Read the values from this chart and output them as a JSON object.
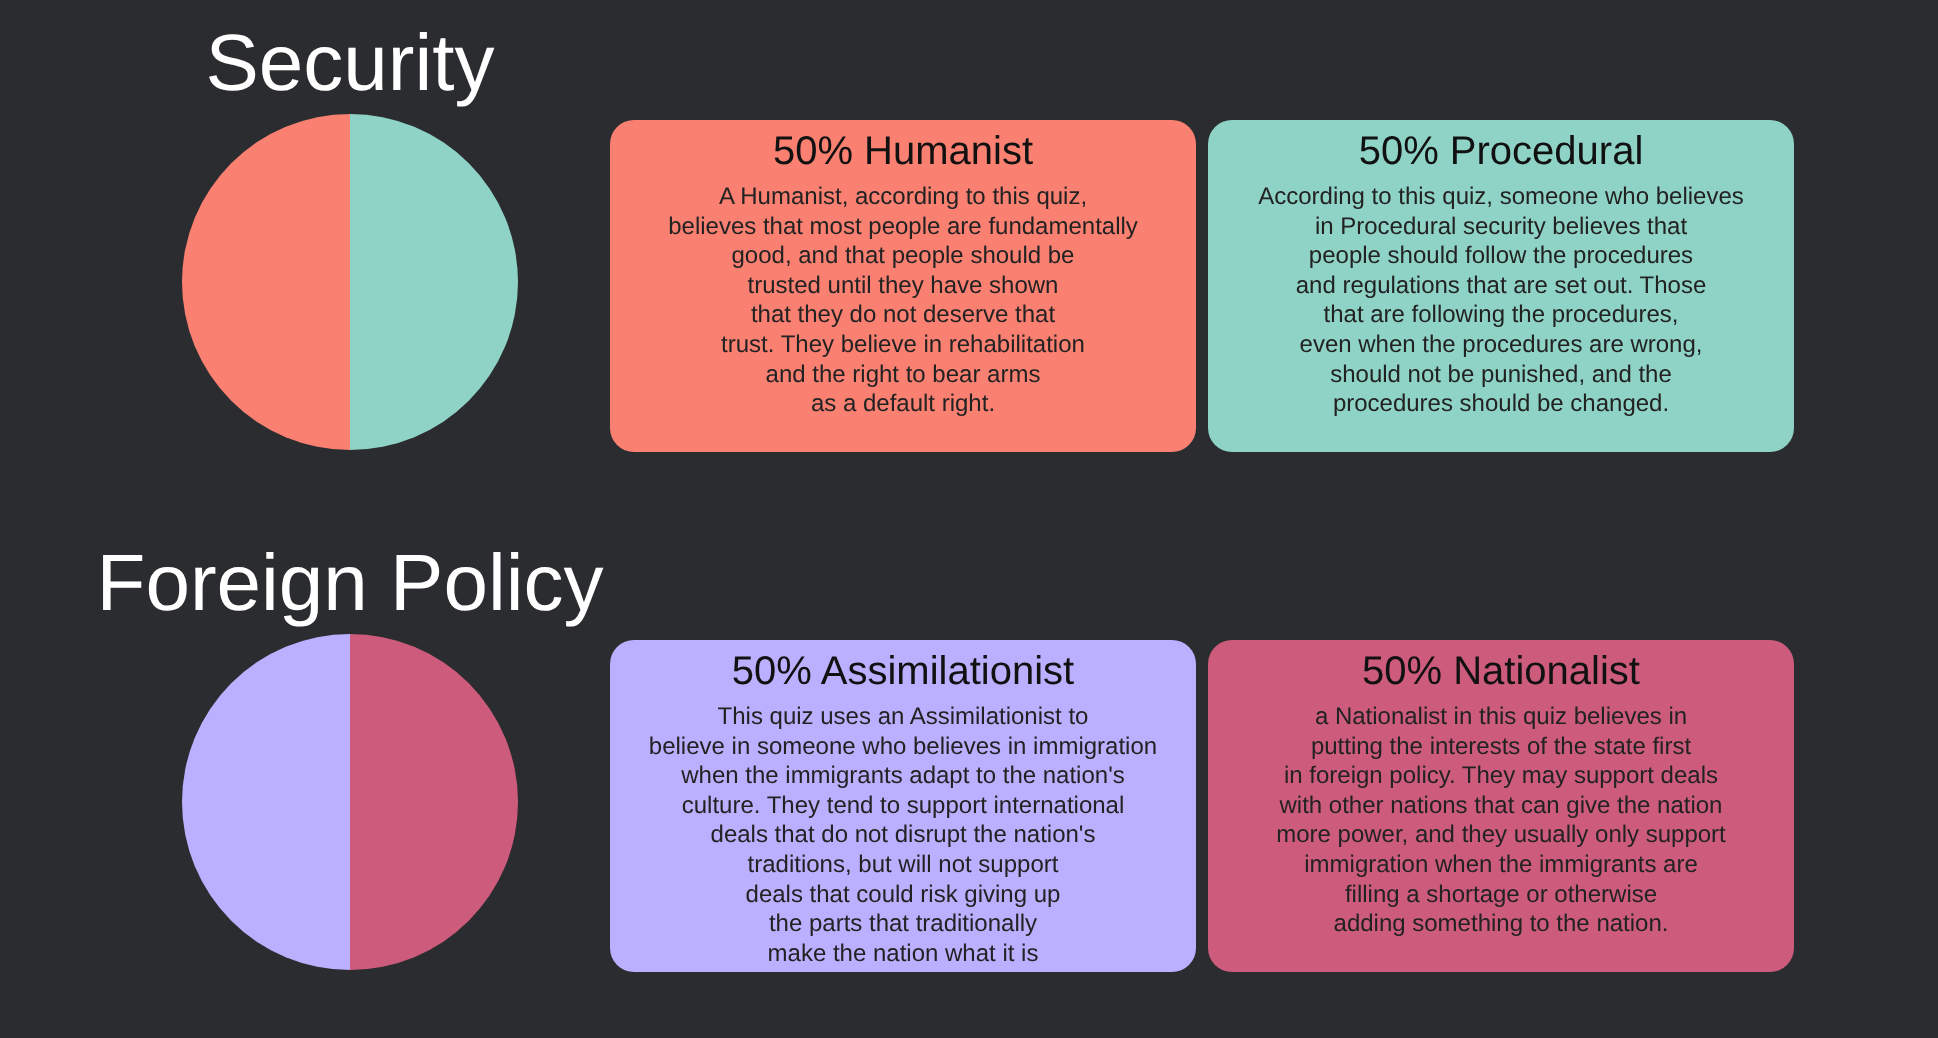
{
  "chart_data": [
    {
      "type": "pie",
      "title": "Security",
      "categories": [
        null,
        null
      ],
      "values": [
        50,
        50
      ],
      "colors": [
        "#fa8072",
        "#8fd3c6"
      ]
    },
    {
      "type": "other",
      "colors": [
        "#fa8072",
        "#8fd3c6"
      ],
      "annotations": [
        "50% Humanist",
        "A Humanist, according to this quiz,\nbelieves that most people are fundamentally\ngood, and that people should be\ntrusted until they have shown\nthat they do not deserve that\ntrust. They believe in rehabilitation\nand the right to bear arms\nas a default right.",
        "50% Procedural",
        "According to this quiz, someone who believes\nin Procedural security believes that\npeople should follow the procedures\nand regulations that are set out. Those\nthat are following the procedures,\neven when the procedures are wrong,\nshould not be punished, and the\nprocedures should be changed."
      ]
    },
    {
      "type": "pie",
      "title": "Foreign Policy",
      "categories": [
        null,
        null
      ],
      "values": [
        50,
        50
      ],
      "colors": [
        "#bbb0ff",
        "#cd5c7c"
      ]
    },
    {
      "type": "other",
      "colors": [
        "#bbb0ff",
        "#cd5c7c"
      ],
      "annotations": [
        "50% Assimilationist",
        "This quiz uses an Assimilationist to\nbelieve in someone who believes in immigration\nwhen the immigrants adapt to the nation's\nculture. They tend to support international\ndeals that do not disrupt the nation's\ntraditions, but will not support\ndeals that could risk giving up\nthe parts that traditionally\nmake the nation what it is",
        "50% Nationalist",
        "a Nationalist in this quiz believes in\nputting the interests of the state first\nin foreign policy. They may support deals\nwith other nations that can give the nation\nmore power, and they usually only support\nimmigration when the immigrants are\nfilling a shortage or otherwise\nadding something to the nation."
      ]
    }
  ]
}
